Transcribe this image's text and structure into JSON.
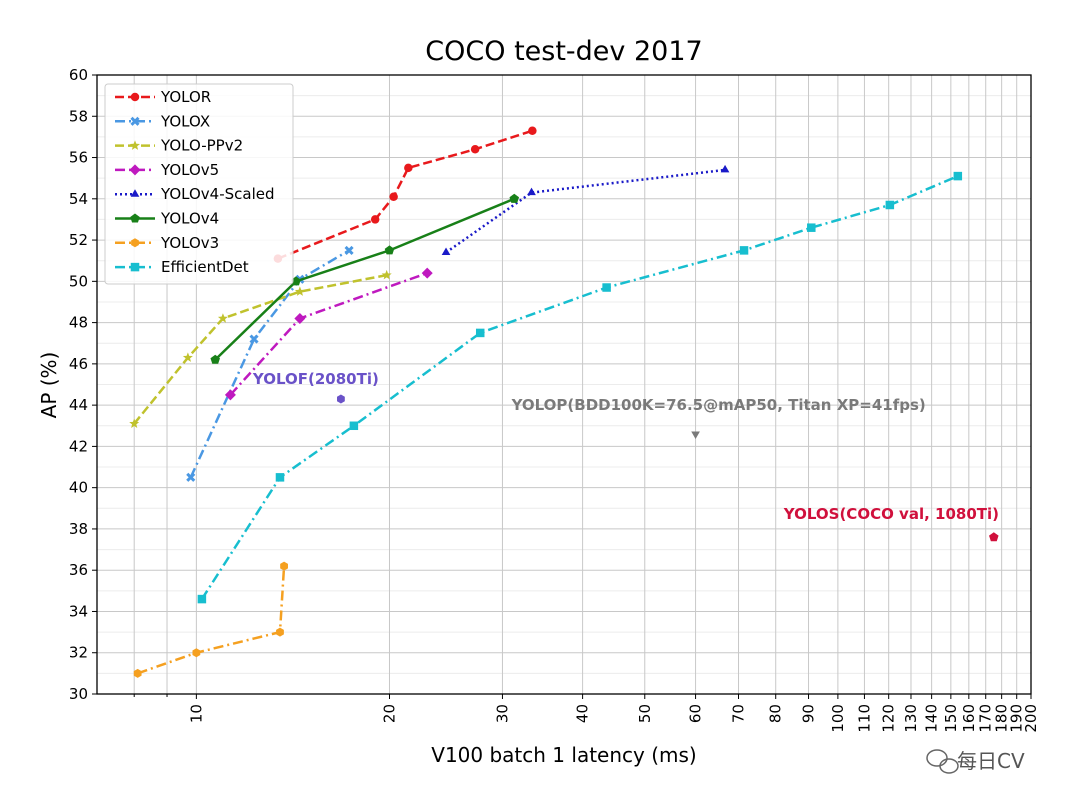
{
  "chart_data": {
    "type": "line",
    "title": "COCO test-dev 2017",
    "xlabel": "V100 batch 1 latency (ms)",
    "ylabel": "AP (%)",
    "xscale": "log",
    "xlim": [
      7,
      200
    ],
    "ylim": [
      30,
      60
    ],
    "grid": true,
    "legend_position": "top-left",
    "yticks": [
      30,
      32,
      34,
      36,
      38,
      40,
      42,
      44,
      46,
      48,
      50,
      52,
      54,
      56,
      58,
      60
    ],
    "ytick_labels": [
      "30",
      "32",
      "34",
      "36",
      "38",
      "40",
      "42",
      "44",
      "46",
      "48",
      "50",
      "52",
      "54",
      "56",
      "58",
      "60"
    ],
    "xticks": [
      10,
      20,
      30,
      40,
      50,
      60,
      70,
      80,
      90,
      100,
      110,
      120,
      130,
      140,
      150,
      160,
      170,
      180,
      190,
      200
    ],
    "xtick_labels": [
      "10",
      "20",
      "30",
      "40",
      "50",
      "60",
      "70",
      "80",
      "90",
      "100",
      "110",
      "120",
      "130",
      "140",
      "150",
      "160",
      "170",
      "180",
      "190",
      "200"
    ],
    "series": [
      {
        "name": "YOLOR",
        "color": "#e8191c",
        "line": "dashed",
        "marker": "circle",
        "x": [
          13.4,
          19.0,
          20.3,
          21.4,
          27.2,
          33.4
        ],
        "y": [
          51.1,
          53.0,
          54.1,
          55.5,
          56.4,
          57.3
        ]
      },
      {
        "name": "YOLOX",
        "color": "#4a98e3",
        "line": "dashdot",
        "marker": "x",
        "x": [
          9.8,
          12.3,
          14.5,
          17.3
        ],
        "y": [
          40.5,
          47.2,
          50.1,
          51.5
        ]
      },
      {
        "name": "YOLO-PPv2",
        "color": "#c0c22d",
        "line": "dashed",
        "marker": "star",
        "x": [
          8.0,
          9.7,
          11.0,
          14.5,
          19.8
        ],
        "y": [
          43.1,
          46.3,
          48.2,
          49.5,
          50.3
        ]
      },
      {
        "name": "YOLOv5",
        "color": "#bf19bf",
        "line": "dashdot",
        "marker": "diamond",
        "x": [
          11.3,
          14.5,
          22.9
        ],
        "y": [
          44.5,
          48.2,
          50.4
        ]
      },
      {
        "name": "YOLOv4-Scaled",
        "color": "#1a1ac8",
        "line": "dotted",
        "marker": "triangle",
        "x": [
          24.5,
          33.3,
          66.7
        ],
        "y": [
          51.4,
          54.3,
          55.4
        ]
      },
      {
        "name": "YOLOv4",
        "color": "#188018",
        "line": "solid",
        "marker": "pentagon",
        "x": [
          10.7,
          14.3,
          20.0,
          31.3
        ],
        "y": [
          46.2,
          50.0,
          51.5,
          54.0
        ]
      },
      {
        "name": "YOLOv3",
        "color": "#f5a020",
        "line": "dashdot",
        "marker": "hexagon",
        "x": [
          8.1,
          10.0,
          13.5,
          13.7
        ],
        "y": [
          31.0,
          32.0,
          33.0,
          36.2
        ]
      },
      {
        "name": "EfficientDet",
        "color": "#17becf",
        "line": "dashdot",
        "marker": "square",
        "x": [
          10.2,
          13.5,
          17.6,
          27.7,
          43.6,
          71.4,
          90.9,
          120.5,
          153.8
        ],
        "y": [
          34.6,
          40.5,
          43.0,
          47.5,
          49.7,
          51.5,
          52.6,
          53.7,
          55.1
        ]
      }
    ],
    "annotations": [
      {
        "text": "YOLOF(2080Ti)",
        "color": "#6a52c8",
        "point": {
          "x": 16.8,
          "y": 44.3
        },
        "marker": "hexagon",
        "point_color": "#6a52c8"
      },
      {
        "text": "YOLOP(BDD100K=76.5@mAP50, Titan XP=41fps)",
        "color": "#7a7a7a",
        "point": {
          "x": 60.0,
          "y": 42.6
        },
        "marker": "triangle-down",
        "point_color": "#7a7a7a"
      },
      {
        "text": "YOLOS(COCO val, 1080Ti)",
        "color": "#d0103c",
        "point": {
          "x": 175.0,
          "y": 37.6
        },
        "marker": "pentagon",
        "point_color": "#d0103c"
      }
    ]
  },
  "watermark": {
    "text": "每日CV"
  }
}
